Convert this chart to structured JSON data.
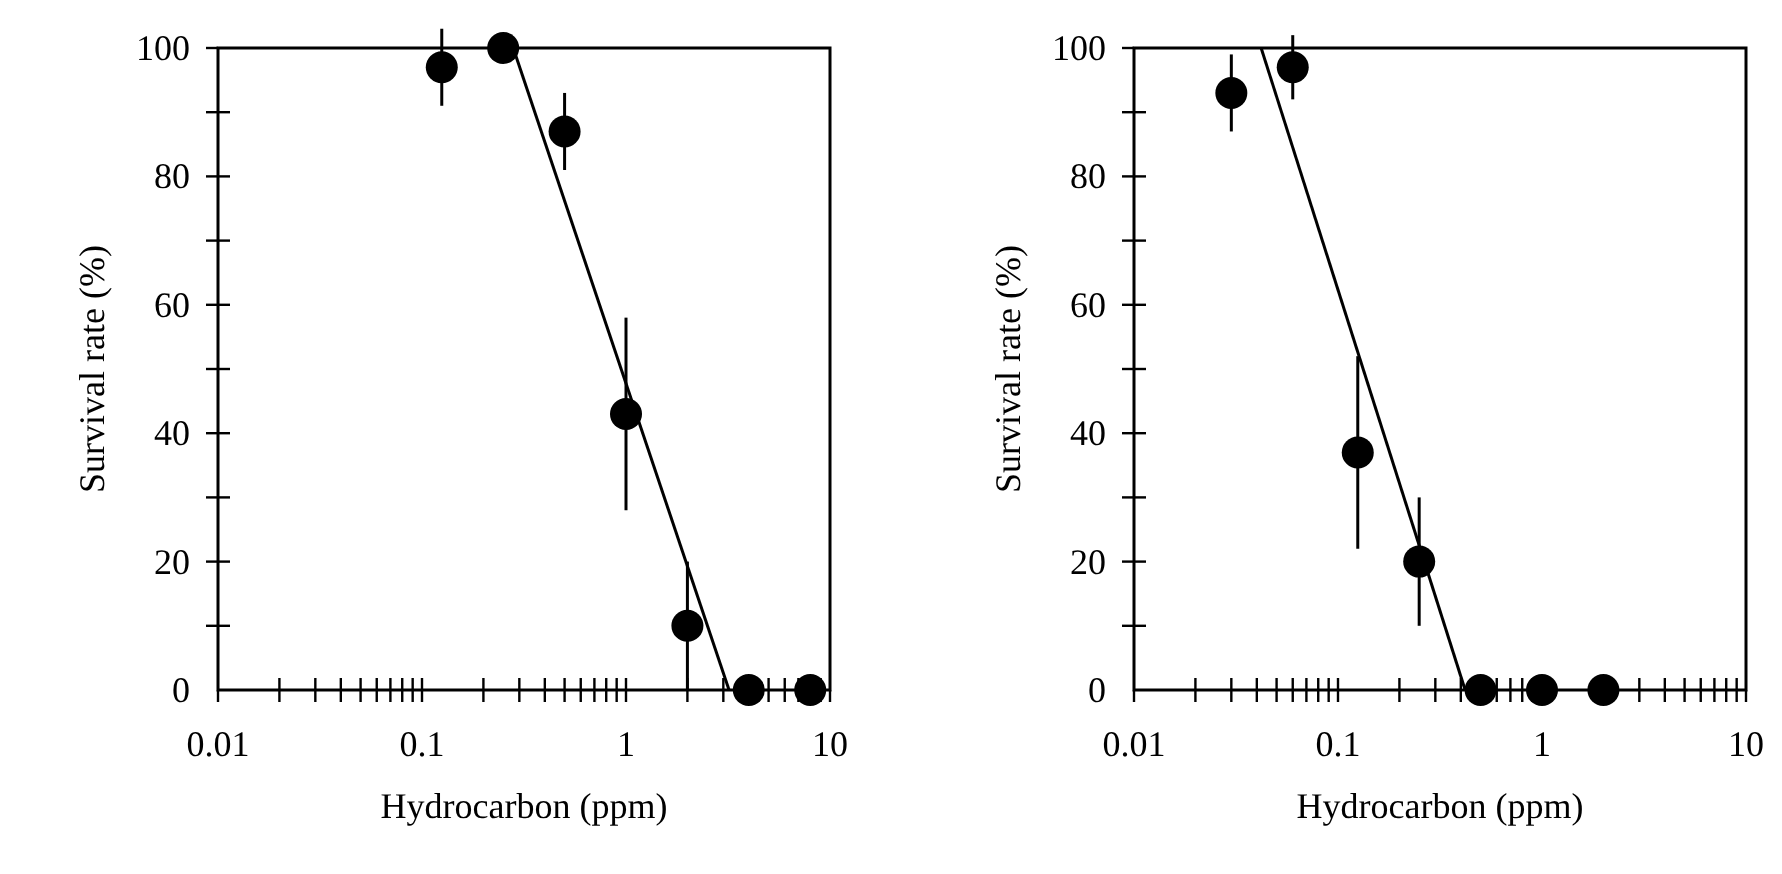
{
  "chart_data": [
    {
      "type": "scatter",
      "xlabel": "Hydrocarbon  (ppm)",
      "ylabel": "Survival rate (%)",
      "log": "x",
      "xlim": [
        0.01,
        10
      ],
      "ylim": [
        0,
        100
      ],
      "xticks": [
        0.01,
        {
          "value": 0.02,
          "label": null
        },
        {
          "value": 0.03,
          "label": null
        },
        {
          "value": 0.04,
          "label": null
        },
        {
          "value": 0.05,
          "label": null
        },
        {
          "value": 0.06,
          "label": null
        },
        {
          "value": 0.07,
          "label": null
        },
        {
          "value": 0.08,
          "label": null
        },
        {
          "value": 0.09,
          "label": null
        },
        0.1,
        {
          "value": 0.2,
          "label": null
        },
        {
          "value": 0.3,
          "label": null
        },
        {
          "value": 0.4,
          "label": null
        },
        {
          "value": 0.5,
          "label": null
        },
        {
          "value": 0.6,
          "label": null
        },
        {
          "value": 0.7,
          "label": null
        },
        {
          "value": 0.8,
          "label": null
        },
        {
          "value": 0.9,
          "label": null
        },
        1,
        {
          "value": 2,
          "label": null
        },
        {
          "value": 3,
          "label": null
        },
        {
          "value": 4,
          "label": null
        },
        {
          "value": 5,
          "label": null
        },
        {
          "value": 6,
          "label": null
        },
        {
          "value": 7,
          "label": null
        },
        {
          "value": 8,
          "label": null
        },
        {
          "value": 9,
          "label": null
        },
        10
      ],
      "yticks": [
        0,
        {
          "value": 10,
          "label": null
        },
        20,
        {
          "value": 30,
          "label": null
        },
        40,
        {
          "value": 50,
          "label": null
        },
        60,
        {
          "value": 70,
          "label": null
        },
        80,
        {
          "value": 90,
          "label": null
        },
        100
      ],
      "series": [
        {
          "color": "#000000",
          "marker": "circle",
          "x": [
            0.125,
            0.25,
            0.5,
            1,
            2,
            4,
            8
          ],
          "values": [
            97,
            100,
            87,
            43,
            10,
            0,
            0
          ],
          "errors": [
            6,
            null,
            6,
            15,
            10,
            null,
            null
          ]
        },
        {
          "type": "line",
          "color": "#000000",
          "x": [
            0.28,
            3.2
          ],
          "values": [
            100,
            0
          ]
        }
      ]
    },
    {
      "type": "scatter",
      "xlabel": "Hydrocarbon  (ppm)",
      "ylabel": "Survival rate (%)",
      "log": "x",
      "xlim": [
        0.01,
        10
      ],
      "ylim": [
        0,
        100
      ],
      "xticks": [
        0.01,
        {
          "value": 0.02,
          "label": null
        },
        {
          "value": 0.03,
          "label": null
        },
        {
          "value": 0.04,
          "label": null
        },
        {
          "value": 0.05,
          "label": null
        },
        {
          "value": 0.06,
          "label": null
        },
        {
          "value": 0.07,
          "label": null
        },
        {
          "value": 0.08,
          "label": null
        },
        {
          "value": 0.09,
          "label": null
        },
        0.1,
        {
          "value": 0.2,
          "label": null
        },
        {
          "value": 0.3,
          "label": null
        },
        {
          "value": 0.4,
          "label": null
        },
        {
          "value": 0.5,
          "label": null
        },
        {
          "value": 0.6,
          "label": null
        },
        {
          "value": 0.7,
          "label": null
        },
        {
          "value": 0.8,
          "label": null
        },
        {
          "value": 0.9,
          "label": null
        },
        1,
        {
          "value": 2,
          "label": null
        },
        {
          "value": 3,
          "label": null
        },
        {
          "value": 4,
          "label": null
        },
        {
          "value": 5,
          "label": null
        },
        {
          "value": 6,
          "label": null
        },
        {
          "value": 7,
          "label": null
        },
        {
          "value": 8,
          "label": null
        },
        {
          "value": 9,
          "label": null
        },
        10
      ],
      "yticks": [
        0,
        {
          "value": 10,
          "label": null
        },
        20,
        {
          "value": 30,
          "label": null
        },
        40,
        {
          "value": 50,
          "label": null
        },
        60,
        {
          "value": 70,
          "label": null
        },
        80,
        {
          "value": 90,
          "label": null
        },
        100
      ],
      "series": [
        {
          "color": "#000000",
          "marker": "circle",
          "x": [
            0.03,
            0.06,
            0.125,
            0.25,
            0.5,
            1,
            2
          ],
          "values": [
            93,
            97,
            37,
            20,
            0,
            0,
            0
          ],
          "errors": [
            6,
            5,
            15,
            10,
            null,
            null,
            null
          ]
        },
        {
          "type": "line",
          "color": "#000000",
          "x": [
            0.042,
            0.42
          ],
          "values": [
            100,
            0
          ]
        }
      ]
    }
  ]
}
